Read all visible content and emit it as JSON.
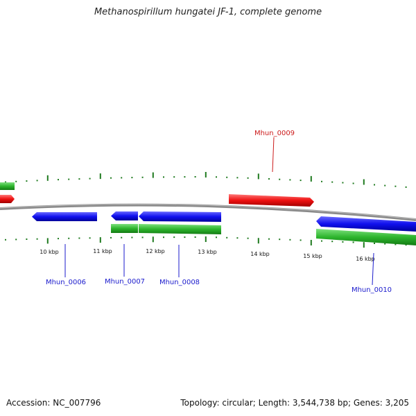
{
  "title": "Methanospirillum hungatei JF-1, complete genome",
  "footer": {
    "accession": "Accession: NC_007796",
    "summary": "Topology: circular; Length: 3,544,738 bp; Genes: 3,205"
  },
  "colors": {
    "forward_cds": "#1a1aff",
    "reverse_cds": "#2db52d",
    "rna": "#ff1a1a",
    "backbone": "#888888",
    "tick": "#1e7a1e",
    "label_blue": "#1a1acc",
    "label_red": "#cc1a1a"
  },
  "scale_ticks": [
    "10 kbp",
    "11 kbp",
    "12 kbp",
    "13 kbp",
    "14 kbp",
    "15 kbp",
    "16 kbp"
  ],
  "gene_labels": [
    {
      "id": "Mhun_0006",
      "color": "blue"
    },
    {
      "id": "Mhun_0007",
      "color": "blue"
    },
    {
      "id": "Mhun_0008",
      "color": "blue"
    },
    {
      "id": "Mhun_0009",
      "color": "red"
    },
    {
      "id": "Mhun_0010",
      "color": "blue"
    }
  ]
}
